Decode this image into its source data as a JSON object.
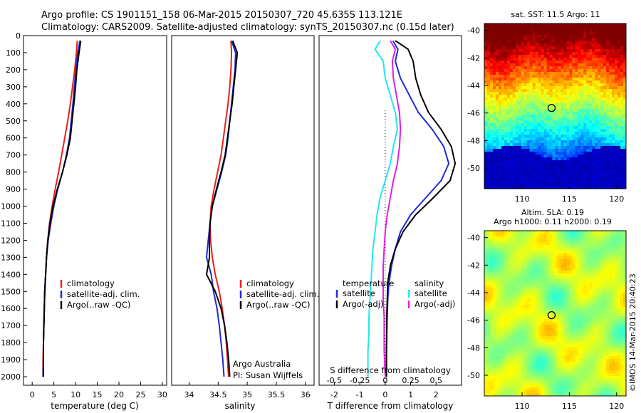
{
  "header": {
    "line1": "Argo profile: CS 1901151_158 06-Mar-2015 20150307_720 45.635S 113.121E",
    "line2": "Climatology: CARS2009. Satellite-adjusted climatology: synTS_20150307.nc (0.15d later)"
  },
  "colors": {
    "climatology": "#e8201a",
    "satellite": "#1f2bd6",
    "argo": "#000000",
    "sat_t": "#1f2bd6",
    "sat_s": "#22e6f2",
    "argo_s": "#e020e0"
  },
  "chart_data": [
    {
      "type": "line",
      "xlabel": "temperature (deg C)",
      "ylabel": "",
      "xlim": [
        -2,
        31
      ],
      "ylim": [
        2050,
        0
      ],
      "xticks": [
        "0",
        "5",
        "10",
        "15",
        "20",
        "25",
        "30"
      ],
      "yticks": [
        "0",
        "100",
        "200",
        "300",
        "400",
        "500",
        "600",
        "700",
        "800",
        "900",
        "1000",
        "1100",
        "1200",
        "1300",
        "1400",
        "1500",
        "1600",
        "1700",
        "1800",
        "1900",
        "2000"
      ],
      "legend": [
        "climatology",
        "satellite-adj. clim.",
        "Argo(..raw -QC)"
      ],
      "series": [
        {
          "name": "climatology",
          "depth": [
            30,
            100,
            200,
            300,
            400,
            500,
            600,
            700,
            800,
            900,
            1000,
            1100,
            1200,
            1300,
            1400,
            1500,
            1600,
            1700,
            1800,
            1900,
            2000
          ],
          "values": [
            10.4,
            10.2,
            9.8,
            9.3,
            8.8,
            8.2,
            7.5,
            6.8,
            6.1,
            5.3,
            4.6,
            4.0,
            3.6,
            3.3,
            3.1,
            2.9,
            2.8,
            2.7,
            2.6,
            2.5,
            2.5
          ]
        },
        {
          "name": "satellite-adj. clim.",
          "depth": [
            30,
            100,
            200,
            300,
            400,
            500,
            600,
            700,
            800,
            900,
            1000,
            1100,
            1200,
            1300,
            1400,
            1500,
            1600,
            1700,
            1800,
            1900,
            2000
          ],
          "values": [
            11.0,
            10.5,
            10.1,
            9.7,
            9.4,
            9.0,
            8.6,
            7.9,
            7.0,
            5.9,
            5.0,
            4.3,
            3.7,
            3.3,
            3.1,
            2.9,
            2.8,
            2.7,
            2.6,
            2.6,
            2.5
          ]
        },
        {
          "name": "Argo(..raw -QC)",
          "depth": [
            30,
            100,
            200,
            300,
            400,
            500,
            600,
            700,
            800,
            900,
            1000,
            1100,
            1200,
            1300,
            1400,
            1500,
            1600,
            1700,
            1800,
            1900,
            2000
          ],
          "values": [
            11.2,
            10.8,
            10.3,
            10.0,
            9.6,
            9.2,
            8.8,
            8.0,
            7.0,
            5.8,
            4.8,
            4.1,
            3.6,
            3.3,
            3.1,
            2.9,
            2.8,
            2.7,
            2.6,
            2.6,
            2.6
          ]
        }
      ]
    },
    {
      "type": "line",
      "xlabel": "salinity",
      "ylabel": "",
      "xlim": [
        33.7,
        36.15
      ],
      "ylim": [
        2050,
        0
      ],
      "xticks": [
        "34",
        "34.5",
        "35",
        "35.5",
        "36"
      ],
      "legend": [
        "climatology",
        "satellite-adj. clim.",
        "Argo(..raw -QC)"
      ],
      "annotations": [
        "Argo Australia",
        "PI: Susan Wijffels"
      ],
      "series": [
        {
          "name": "climatology",
          "depth": [
            30,
            100,
            200,
            300,
            400,
            500,
            600,
            700,
            800,
            900,
            1000,
            1100,
            1200,
            1300,
            1400,
            1500,
            1600,
            1700,
            1800,
            1900,
            2000
          ],
          "values": [
            34.72,
            34.73,
            34.72,
            34.7,
            34.67,
            34.63,
            34.59,
            34.55,
            34.49,
            34.43,
            34.38,
            34.36,
            34.37,
            34.4,
            34.45,
            34.52,
            34.57,
            34.61,
            34.64,
            34.66,
            34.68
          ]
        },
        {
          "name": "satellite-adj. clim.",
          "depth": [
            30,
            100,
            200,
            300,
            400,
            500,
            600,
            700,
            800,
            900,
            1000,
            1100,
            1200,
            1300,
            1400,
            1500,
            1600,
            1700,
            1800,
            1900,
            2000
          ],
          "values": [
            34.73,
            34.8,
            34.79,
            34.76,
            34.73,
            34.7,
            34.67,
            34.63,
            34.56,
            34.48,
            34.4,
            34.36,
            34.33,
            34.3,
            34.38,
            34.42,
            34.48,
            34.52,
            34.55,
            34.58,
            34.6
          ]
        },
        {
          "name": "Argo(..raw -QC)",
          "depth": [
            30,
            100,
            200,
            300,
            400,
            500,
            600,
            700,
            800,
            900,
            1000,
            1100,
            1200,
            1300,
            1400,
            1500,
            1600,
            1700,
            1800,
            1900,
            2000
          ],
          "values": [
            34.75,
            34.83,
            34.8,
            34.77,
            34.74,
            34.7,
            34.66,
            34.62,
            34.55,
            34.47,
            34.4,
            34.36,
            34.35,
            34.35,
            34.3,
            34.45,
            34.55,
            34.61,
            34.65,
            34.68,
            34.7
          ]
        }
      ]
    },
    {
      "type": "line",
      "xlabel": "T difference from climatology",
      "xlabel_top": "S difference from climatology",
      "xlim": [
        -2.6,
        3.0
      ],
      "ylim": [
        2050,
        0
      ],
      "xticks": [
        "-2",
        "-1",
        "0",
        "1",
        "2"
      ],
      "xticks_s": [
        "-0.5",
        "-0.25",
        "0",
        "0.25",
        "0.5"
      ],
      "legend_titles": [
        "temperature",
        "salinity"
      ],
      "legend": [
        "satellite",
        "Argo(-adj)",
        "satellite",
        "Argo(-adj)"
      ],
      "series": [
        {
          "name": "satellite",
          "depth": [
            30,
            80,
            150,
            250,
            350,
            450,
            550,
            650,
            750,
            850,
            950,
            1050,
            1150,
            1250,
            1350,
            1450,
            1550,
            1650,
            1750,
            1850,
            2000
          ],
          "values": [
            0.3,
            0.5,
            0.4,
            0.6,
            0.95,
            1.3,
            1.85,
            2.3,
            2.5,
            2.2,
            1.6,
            1.0,
            0.6,
            0.4,
            0.25,
            0.15,
            0.1,
            0.08,
            0.06,
            0.05,
            0.05
          ]
        },
        {
          "name": "Argo(-adj)",
          "depth": [
            30,
            80,
            150,
            250,
            350,
            450,
            550,
            650,
            750,
            850,
            950,
            1050,
            1150,
            1250,
            1350,
            1450,
            1550,
            1650,
            1750,
            1850,
            2000
          ],
          "values": [
            0.4,
            0.9,
            1.1,
            1.2,
            1.4,
            1.7,
            2.2,
            2.6,
            2.75,
            2.55,
            1.9,
            1.2,
            0.7,
            0.4,
            0.2,
            0.1,
            0.08,
            0.06,
            0.06,
            0.05,
            0.05
          ]
        },
        {
          "name": "satellite",
          "depth": [
            30,
            80,
            150,
            250,
            350,
            450,
            550,
            650,
            750,
            850,
            950,
            1050,
            1150,
            1250,
            1350,
            1450,
            1550,
            1650,
            1750,
            1850,
            2000
          ],
          "values": [
            -0.05,
            -0.1,
            -0.02,
            0.0,
            0.05,
            0.1,
            0.12,
            0.08,
            0.05,
            0.0,
            -0.05,
            -0.08,
            -0.1,
            -0.12,
            -0.13,
            -0.14,
            -0.15,
            -0.16,
            -0.16,
            -0.17,
            -0.17
          ]
        },
        {
          "name": "Argo(-adj)",
          "depth": [
            30,
            80,
            150,
            250,
            350,
            450,
            550,
            650,
            750,
            850,
            950,
            1050,
            1150,
            1250,
            1350,
            1450,
            1550,
            1650,
            1750,
            1850,
            2000
          ],
          "values": [
            0.05,
            0.1,
            0.07,
            0.08,
            0.11,
            0.14,
            0.15,
            0.14,
            0.12,
            0.08,
            0.05,
            0.02,
            0.0,
            -0.01,
            -0.02,
            -0.02,
            -0.02,
            -0.01,
            -0.01,
            -0.01,
            0.0
          ]
        }
      ]
    },
    {
      "type": "heatmap",
      "title": "sat. SST: 11.5 Argo: 11",
      "xlim": [
        106,
        121
      ],
      "ylim": [
        -51.5,
        -39.5
      ],
      "xticks": [
        "110",
        "115",
        "120"
      ],
      "yticks": [
        "-40",
        "-42",
        "-44",
        "-46",
        "-48",
        "-50"
      ],
      "marker": {
        "lon": 113.121,
        "lat": -45.635
      }
    },
    {
      "type": "heatmap",
      "title": "Altim. SLA: 0.19",
      "subtitle": "Argo h1000: 0.11 h2000: 0.19",
      "xlim": [
        106,
        121
      ],
      "ylim": [
        -51.5,
        -39.5
      ],
      "xticks": [
        "110",
        "115",
        "120"
      ],
      "yticks": [
        "-40",
        "-42",
        "-44",
        "-46",
        "-48",
        "-50"
      ],
      "marker": {
        "lon": 113.121,
        "lat": -45.635
      }
    }
  ],
  "credit": "©IMOS 14-Mar-2015 20:40:23"
}
